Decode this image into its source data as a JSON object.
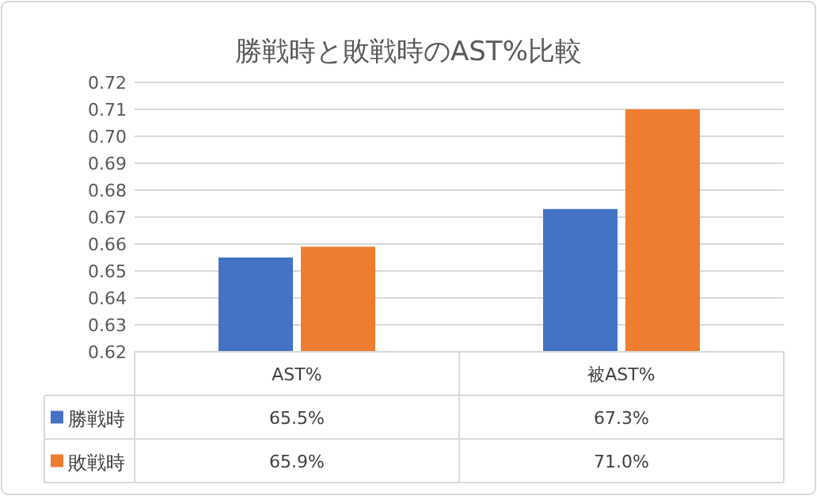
{
  "chart_data": {
    "type": "bar",
    "title": "勝戦時と敗戦時のAST%比較",
    "categories": [
      "AST%",
      "被AST%"
    ],
    "series": [
      {
        "name": "勝戦時",
        "color": "#4472c4",
        "values": [
          0.655,
          0.673
        ],
        "value_labels": [
          "65.5%",
          "67.3%"
        ]
      },
      {
        "name": "敗戦時",
        "color": "#ed7d31",
        "values": [
          0.659,
          0.71
        ],
        "value_labels": [
          "65.9%",
          "71.0%"
        ]
      }
    ],
    "ylim": [
      0.62,
      0.72
    ],
    "yticks": [
      0.62,
      0.63,
      0.64,
      0.65,
      0.66,
      0.67,
      0.68,
      0.69,
      {
        "value": 0.7,
        "label": "0.70"
      },
      0.71,
      0.72
    ],
    "grid": "y",
    "legend": "bottom"
  }
}
